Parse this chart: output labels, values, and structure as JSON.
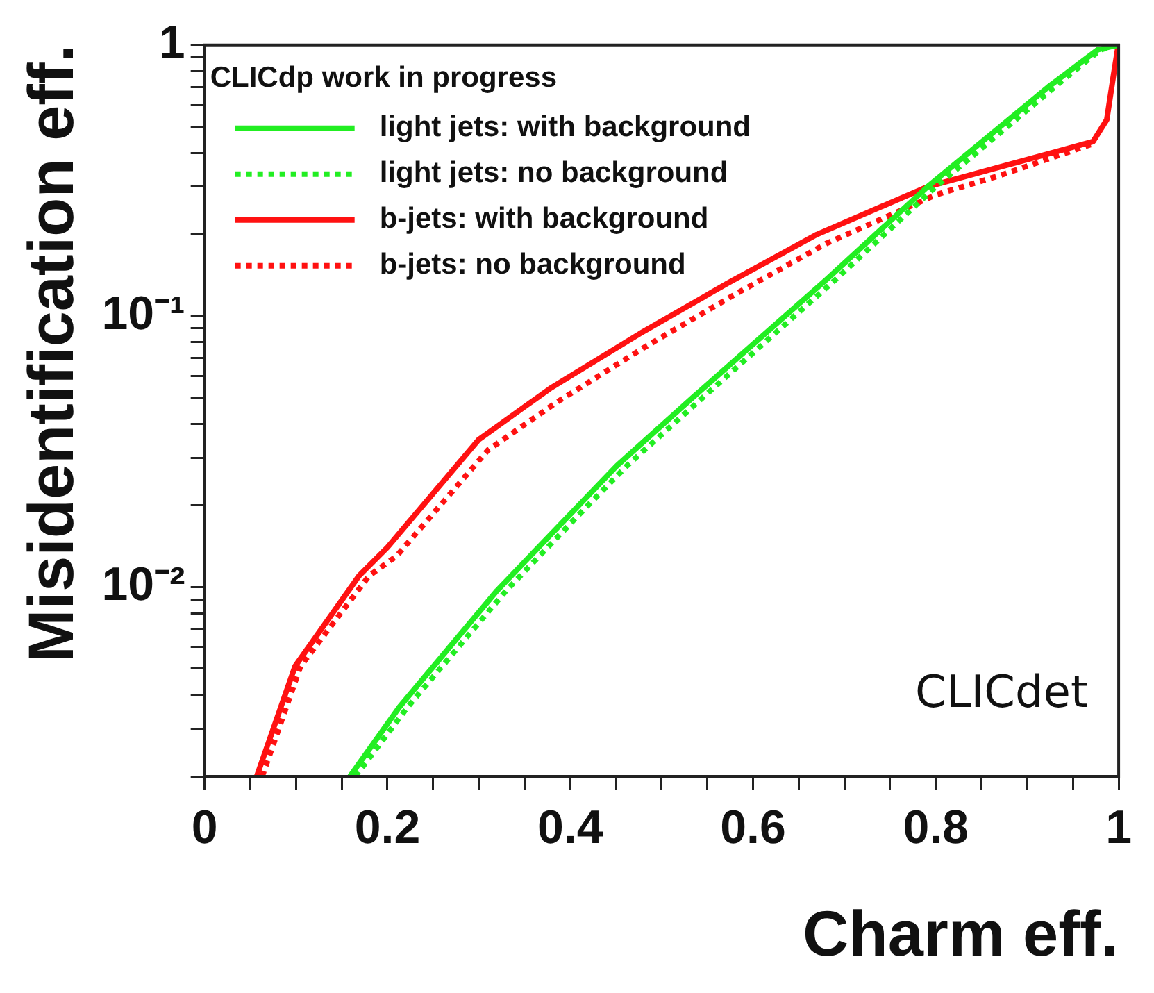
{
  "chart_data": {
    "type": "line",
    "xlabel": "Charm eff.",
    "ylabel": "Misidentification eff.",
    "log": "y",
    "grid": false,
    "legend": "top left",
    "marker": "none",
    "xlim": [
      0,
      1
    ],
    "ylim": [
      0.002,
      1
    ],
    "xticks": [
      0,
      {
        "value": 0.05,
        "label": null
      },
      {
        "value": 0.1,
        "label": null
      },
      {
        "value": 0.15,
        "label": null
      },
      0.2,
      {
        "value": 0.25,
        "label": null
      },
      {
        "value": 0.3,
        "label": null
      },
      {
        "value": 0.35,
        "label": null
      },
      0.4,
      {
        "value": 0.45,
        "label": null
      },
      {
        "value": 0.5,
        "label": null
      },
      {
        "value": 0.55,
        "label": null
      },
      0.6,
      {
        "value": 0.65,
        "label": null
      },
      {
        "value": 0.7,
        "label": null
      },
      {
        "value": 0.75,
        "label": null
      },
      0.8,
      {
        "value": 0.85,
        "label": null
      },
      {
        "value": 0.9,
        "label": null
      },
      {
        "value": 0.95,
        "label": null
      },
      1
    ],
    "yticks": [
      {
        "value": 0.002,
        "label": null
      },
      {
        "value": 0.003,
        "label": null
      },
      {
        "value": 0.004,
        "label": null
      },
      {
        "value": 0.005,
        "label": null
      },
      {
        "value": 0.006,
        "label": null
      },
      {
        "value": 0.007,
        "label": null
      },
      {
        "value": 0.008,
        "label": null
      },
      {
        "value": 0.009,
        "label": null
      },
      {
        "value": 0.01,
        "label": "10⁻²"
      },
      {
        "value": 0.02,
        "label": null
      },
      {
        "value": 0.03,
        "label": null
      },
      {
        "value": 0.04,
        "label": null
      },
      {
        "value": 0.05,
        "label": null
      },
      {
        "value": 0.06,
        "label": null
      },
      {
        "value": 0.07,
        "label": null
      },
      {
        "value": 0.08,
        "label": null
      },
      {
        "value": 0.09,
        "label": null
      },
      {
        "value": 0.1,
        "label": "10⁻¹"
      },
      {
        "value": 0.2,
        "label": null
      },
      {
        "value": 0.3,
        "label": null
      },
      {
        "value": 0.4,
        "label": null
      },
      {
        "value": 0.5,
        "label": null
      },
      {
        "value": 0.6,
        "label": null
      },
      {
        "value": 0.7,
        "label": null
      },
      {
        "value": 0.8,
        "label": null
      },
      {
        "value": 0.9,
        "label": null
      },
      1
    ],
    "annotations": [
      "CLICdp work in progress",
      "CLICdet"
    ],
    "series": [
      {
        "name": "light jets: with background",
        "color": "#22ee22",
        "line_style": "solid",
        "x": [
          0.159,
          0.213,
          0.32,
          0.403,
          0.451,
          0.534,
          0.68,
          0.791,
          0.923,
          0.977,
          0.999
        ],
        "values": [
          0.002,
          0.0036,
          0.0097,
          0.019,
          0.028,
          0.05,
          0.136,
          0.3,
          0.7,
          0.96,
          1
        ]
      },
      {
        "name": "light jets: no background",
        "color": "#22ee22",
        "line_style": "dotted",
        "x": [
          0.165,
          0.222,
          0.33,
          0.413,
          0.462,
          0.545,
          0.69,
          0.8,
          0.93,
          0.98,
          0.999
        ],
        "values": [
          0.002,
          0.0036,
          0.0097,
          0.019,
          0.028,
          0.05,
          0.136,
          0.3,
          0.7,
          0.96,
          1
        ]
      },
      {
        "name": "b-jets: with background",
        "color": "#ff1111",
        "line_style": "solid",
        "x": [
          0.057,
          0.099,
          0.169,
          0.2,
          0.3,
          0.378,
          0.476,
          0.572,
          0.67,
          0.791,
          0.864,
          0.972,
          0.987,
          0.994,
          0.999,
          1
        ],
        "values": [
          0.002,
          0.0051,
          0.011,
          0.014,
          0.035,
          0.054,
          0.086,
          0.132,
          0.2,
          0.3,
          0.35,
          0.44,
          0.53,
          0.76,
          0.97,
          1
        ]
      },
      {
        "name": "b-jets: no background",
        "color": "#ff1111",
        "line_style": "dotted",
        "x": [
          0.063,
          0.105,
          0.18,
          0.21,
          0.31,
          0.385,
          0.485,
          0.58,
          0.68,
          0.8,
          0.87,
          0.97
        ],
        "values": [
          0.002,
          0.0051,
          0.011,
          0.013,
          0.032,
          0.048,
          0.078,
          0.12,
          0.185,
          0.28,
          0.33,
          0.43
        ]
      }
    ]
  }
}
